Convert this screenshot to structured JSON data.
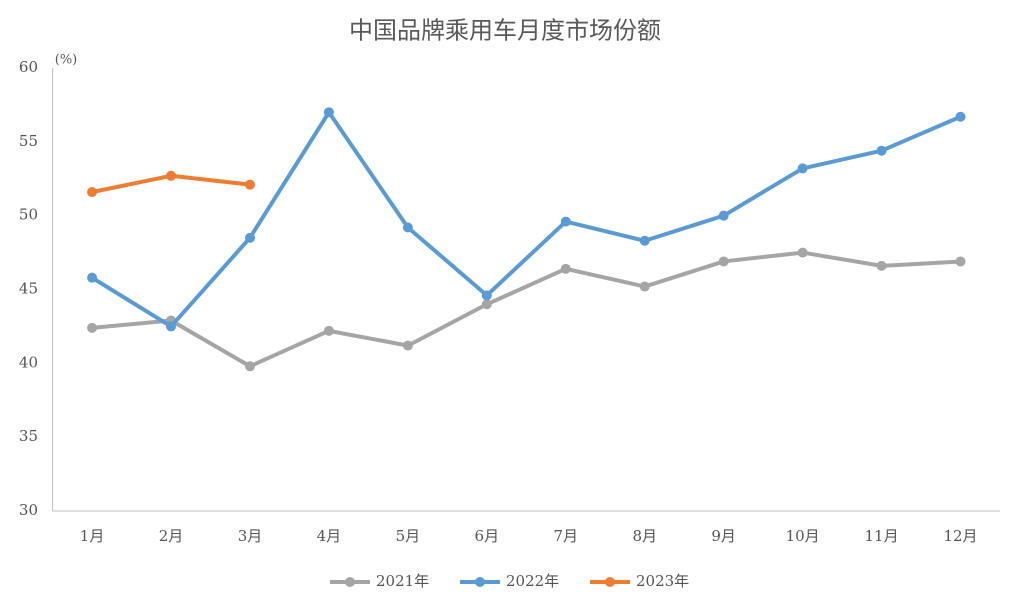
{
  "chart_data": {
    "type": "line",
    "title": "中国品牌乘用车月度市场份额",
    "y_unit": "(%)",
    "categories": [
      "1月",
      "2月",
      "3月",
      "4月",
      "5月",
      "6月",
      "7月",
      "8月",
      "9月",
      "10月",
      "11月",
      "12月"
    ],
    "series": [
      {
        "name": "2021年",
        "color": "#a5a5a5",
        "values": [
          42.4,
          42.9,
          39.8,
          42.2,
          41.2,
          44.0,
          46.4,
          45.2,
          46.9,
          47.5,
          46.6,
          46.9
        ]
      },
      {
        "name": "2022年",
        "color": "#5b9bd5",
        "values": [
          45.8,
          42.5,
          48.5,
          57.0,
          49.2,
          44.6,
          49.6,
          48.3,
          50.0,
          53.2,
          54.4,
          56.7
        ]
      },
      {
        "name": "2023年",
        "color": "#ed7d31",
        "values": [
          51.6,
          52.7,
          52.1,
          null,
          null,
          null,
          null,
          null,
          null,
          null,
          null,
          null
        ]
      }
    ],
    "ylim": [
      30,
      60
    ],
    "yticks": [
      30,
      35,
      40,
      45,
      50,
      55,
      60
    ],
    "grid": false,
    "legend": "bottom"
  }
}
